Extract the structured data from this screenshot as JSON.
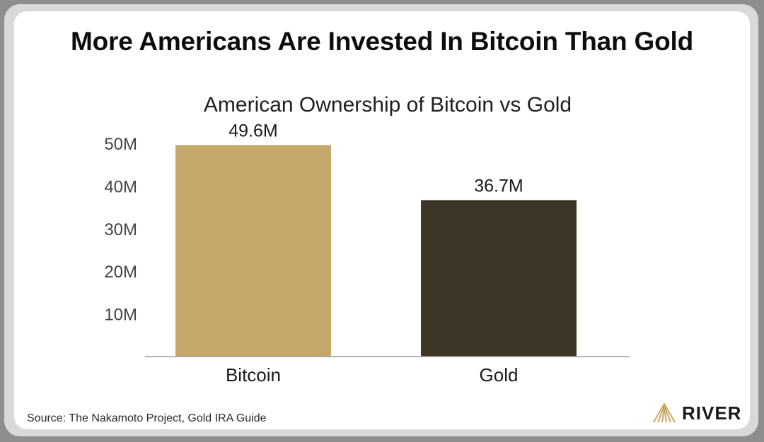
{
  "headline": "More Americans Are Invested In Bitcoin Than Gold",
  "source": "Source: The Nakamoto Project, Gold IRA Guide",
  "brand": {
    "name": "RIVER",
    "logo_icon": "river-mountain-logo-icon",
    "logo_color": "#c9a861"
  },
  "chart_data": {
    "type": "bar",
    "title": "American Ownership of Bitcoin vs Gold",
    "categories": [
      "Bitcoin",
      "Gold"
    ],
    "values": [
      49.6,
      36.7
    ],
    "value_labels": [
      "49.6M",
      "36.7M"
    ],
    "unit": "M",
    "ylim": [
      0,
      53
    ],
    "yticks": [
      {
        "value": 10,
        "label": "10M"
      },
      {
        "value": 20,
        "label": "20M"
      },
      {
        "value": 30,
        "label": "30M"
      },
      {
        "value": 40,
        "label": "40M"
      },
      {
        "value": 50,
        "label": "50M"
      }
    ],
    "colors": [
      "#c4a86a",
      "#3d3526"
    ],
    "grid": false,
    "xlabel": "",
    "ylabel": ""
  }
}
